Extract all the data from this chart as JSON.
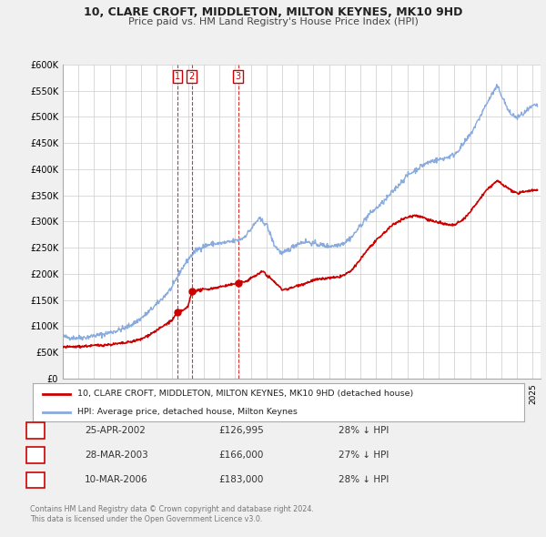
{
  "title": "10, CLARE CROFT, MIDDLETON, MILTON KEYNES, MK10 9HD",
  "subtitle": "Price paid vs. HM Land Registry's House Price Index (HPI)",
  "bg_color": "#f0f0f0",
  "plot_bg_color": "#ffffff",
  "grid_color": "#cccccc",
  "red_line_color": "#cc0000",
  "blue_line_color": "#88aadd",
  "transactions": [
    {
      "num": 1,
      "date": 2002.32,
      "price": 126995
    },
    {
      "num": 2,
      "date": 2003.24,
      "price": 166000
    },
    {
      "num": 3,
      "date": 2006.19,
      "price": 183000
    }
  ],
  "legend_entries": [
    "10, CLARE CROFT, MIDDLETON, MILTON KEYNES, MK10 9HD (detached house)",
    "HPI: Average price, detached house, Milton Keynes"
  ],
  "footer_lines": [
    "Contains HM Land Registry data © Crown copyright and database right 2024.",
    "This data is licensed under the Open Government Licence v3.0."
  ],
  "table_rows": [
    [
      "1",
      "25-APR-2002",
      "£126,995",
      "28% ↓ HPI"
    ],
    [
      "2",
      "28-MAR-2003",
      "£166,000",
      "27% ↓ HPI"
    ],
    [
      "3",
      "10-MAR-2006",
      "£183,000",
      "28% ↓ HPI"
    ]
  ],
  "ylim": [
    0,
    600000
  ],
  "yticks": [
    0,
    50000,
    100000,
    150000,
    200000,
    250000,
    300000,
    350000,
    400000,
    450000,
    500000,
    550000,
    600000
  ],
  "ytick_labels": [
    "£0",
    "£50K",
    "£100K",
    "£150K",
    "£200K",
    "£250K",
    "£300K",
    "£350K",
    "£400K",
    "£450K",
    "£500K",
    "£550K",
    "£600K"
  ],
  "xlim_start": 1995.0,
  "xlim_end": 2025.5,
  "hpi_anchors": [
    [
      1995.0,
      80000
    ],
    [
      1995.5,
      78000
    ],
    [
      1996.0,
      78000
    ],
    [
      1996.5,
      79000
    ],
    [
      1997.0,
      82000
    ],
    [
      1997.5,
      84000
    ],
    [
      1998.0,
      88000
    ],
    [
      1998.5,
      92000
    ],
    [
      1999.0,
      97000
    ],
    [
      1999.5,
      105000
    ],
    [
      2000.0,
      115000
    ],
    [
      2000.5,
      128000
    ],
    [
      2001.0,
      142000
    ],
    [
      2001.5,
      158000
    ],
    [
      2002.0,
      175000
    ],
    [
      2002.5,
      205000
    ],
    [
      2003.0,
      228000
    ],
    [
      2003.5,
      245000
    ],
    [
      2004.0,
      253000
    ],
    [
      2004.5,
      257000
    ],
    [
      2005.0,
      258000
    ],
    [
      2005.5,
      260000
    ],
    [
      2006.0,
      263000
    ],
    [
      2006.5,
      268000
    ],
    [
      2007.0,
      285000
    ],
    [
      2007.5,
      305000
    ],
    [
      2008.0,
      295000
    ],
    [
      2008.25,
      275000
    ],
    [
      2008.5,
      255000
    ],
    [
      2009.0,
      238000
    ],
    [
      2009.5,
      248000
    ],
    [
      2010.0,
      258000
    ],
    [
      2010.5,
      262000
    ],
    [
      2011.0,
      258000
    ],
    [
      2011.5,
      255000
    ],
    [
      2012.0,
      253000
    ],
    [
      2012.5,
      255000
    ],
    [
      2013.0,
      260000
    ],
    [
      2013.5,
      272000
    ],
    [
      2014.0,
      292000
    ],
    [
      2014.5,
      312000
    ],
    [
      2015.0,
      325000
    ],
    [
      2015.5,
      338000
    ],
    [
      2016.0,
      355000
    ],
    [
      2016.5,
      372000
    ],
    [
      2017.0,
      388000
    ],
    [
      2017.5,
      398000
    ],
    [
      2018.0,
      408000
    ],
    [
      2018.5,
      415000
    ],
    [
      2019.0,
      418000
    ],
    [
      2019.5,
      422000
    ],
    [
      2020.0,
      428000
    ],
    [
      2020.5,
      445000
    ],
    [
      2021.0,
      465000
    ],
    [
      2021.5,
      492000
    ],
    [
      2022.0,
      522000
    ],
    [
      2022.5,
      548000
    ],
    [
      2022.75,
      558000
    ],
    [
      2023.0,
      542000
    ],
    [
      2023.5,
      508000
    ],
    [
      2024.0,
      498000
    ],
    [
      2024.5,
      508000
    ],
    [
      2025.0,
      520000
    ],
    [
      2025.3,
      522000
    ]
  ],
  "pp_anchors": [
    [
      1995.0,
      60000
    ],
    [
      1996.0,
      61000
    ],
    [
      1997.0,
      63000
    ],
    [
      1998.0,
      65000
    ],
    [
      1999.0,
      68000
    ],
    [
      2000.0,
      75000
    ],
    [
      2001.0,
      92000
    ],
    [
      2002.0,
      112000
    ],
    [
      2002.32,
      126995
    ],
    [
      2002.8,
      132000
    ],
    [
      2003.0,
      138000
    ],
    [
      2003.24,
      166000
    ],
    [
      2003.6,
      168000
    ],
    [
      2004.0,
      170000
    ],
    [
      2004.5,
      172000
    ],
    [
      2005.0,
      175000
    ],
    [
      2005.5,
      178000
    ],
    [
      2006.0,
      181000
    ],
    [
      2006.19,
      183000
    ],
    [
      2006.8,
      187000
    ],
    [
      2007.0,
      192000
    ],
    [
      2007.5,
      200000
    ],
    [
      2007.8,
      205000
    ],
    [
      2008.0,
      198000
    ],
    [
      2008.5,
      185000
    ],
    [
      2009.0,
      170000
    ],
    [
      2009.5,
      172000
    ],
    [
      2010.0,
      178000
    ],
    [
      2010.5,
      182000
    ],
    [
      2011.0,
      188000
    ],
    [
      2011.5,
      190000
    ],
    [
      2012.0,
      192000
    ],
    [
      2012.5,
      193000
    ],
    [
      2013.0,
      198000
    ],
    [
      2013.5,
      208000
    ],
    [
      2014.0,
      228000
    ],
    [
      2014.5,
      248000
    ],
    [
      2015.0,
      263000
    ],
    [
      2015.5,
      278000
    ],
    [
      2016.0,
      292000
    ],
    [
      2016.5,
      302000
    ],
    [
      2017.0,
      308000
    ],
    [
      2017.5,
      312000
    ],
    [
      2018.0,
      308000
    ],
    [
      2018.5,
      302000
    ],
    [
      2019.0,
      298000
    ],
    [
      2019.5,
      294000
    ],
    [
      2020.0,
      293000
    ],
    [
      2020.5,
      302000
    ],
    [
      2021.0,
      318000
    ],
    [
      2021.5,
      338000
    ],
    [
      2022.0,
      358000
    ],
    [
      2022.5,
      372000
    ],
    [
      2022.75,
      378000
    ],
    [
      2023.0,
      372000
    ],
    [
      2023.5,
      362000
    ],
    [
      2024.0,
      353000
    ],
    [
      2024.5,
      358000
    ],
    [
      2025.0,
      360000
    ],
    [
      2025.3,
      360000
    ]
  ]
}
